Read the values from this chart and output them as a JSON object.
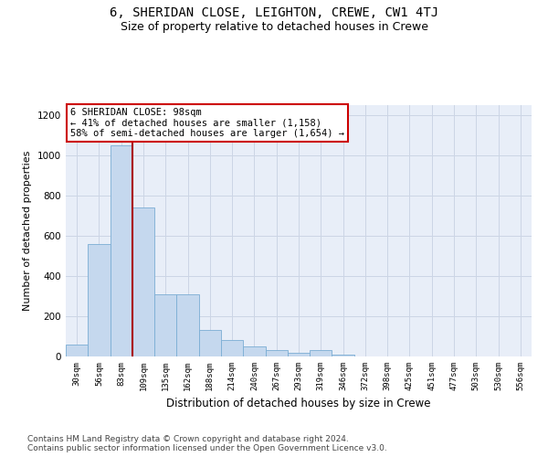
{
  "title1": "6, SHERIDAN CLOSE, LEIGHTON, CREWE, CW1 4TJ",
  "title2": "Size of property relative to detached houses in Crewe",
  "xlabel": "Distribution of detached houses by size in Crewe",
  "ylabel": "Number of detached properties",
  "categories": [
    "30sqm",
    "56sqm",
    "83sqm",
    "109sqm",
    "135sqm",
    "162sqm",
    "188sqm",
    "214sqm",
    "240sqm",
    "267sqm",
    "293sqm",
    "319sqm",
    "346sqm",
    "372sqm",
    "398sqm",
    "425sqm",
    "451sqm",
    "477sqm",
    "503sqm",
    "530sqm",
    "556sqm"
  ],
  "values": [
    60,
    560,
    1050,
    740,
    310,
    310,
    130,
    80,
    50,
    30,
    20,
    30,
    10,
    0,
    0,
    0,
    0,
    0,
    0,
    0,
    0
  ],
  "bar_color": "#c5d8ee",
  "bar_edge_color": "#7aadd4",
  "vline_x": 2.5,
  "vline_color": "#aa0000",
  "annotation_text": "6 SHERIDAN CLOSE: 98sqm\n← 41% of detached houses are smaller (1,158)\n58% of semi-detached houses are larger (1,654) →",
  "annotation_box_color": "#ffffff",
  "annotation_box_edge": "#cc0000",
  "ylim": [
    0,
    1250
  ],
  "yticks": [
    0,
    200,
    400,
    600,
    800,
    1000,
    1200
  ],
  "grid_color": "#ccd5e5",
  "background_color": "#e8eef8",
  "footer": "Contains HM Land Registry data © Crown copyright and database right 2024.\nContains public sector information licensed under the Open Government Licence v3.0.",
  "title1_fontsize": 10,
  "title2_fontsize": 9,
  "xlabel_fontsize": 8.5,
  "ylabel_fontsize": 8,
  "footer_fontsize": 6.5,
  "annot_fontsize": 7.5
}
